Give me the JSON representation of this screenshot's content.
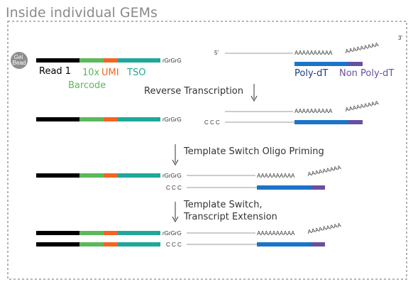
{
  "title": "Inside individual GEMs",
  "bead": "Gel Bead",
  "labels": {
    "read1": "Read 1",
    "tenx": "10x",
    "barcode": "Barcode",
    "umi": "UMI",
    "tso": "TSO",
    "polydt": "Poly-dT",
    "nonpolydt": "Non Poly-dT"
  },
  "ends": {
    "rgrgrg": "rGrGrG",
    "ccc": "C C C",
    "five_prime": "5'",
    "three_prime": "3'"
  },
  "poly_a": "AAAAAAAAAA",
  "poly_a_tail": "AAAAAAAAA",
  "steps": {
    "reverse_transcription": "Reverse Transcription",
    "tso_priming": "Template Switch Oligo Priming",
    "ts_line1": "Template Switch,",
    "ts_line2": "Transcript Extension"
  },
  "colors": {
    "read1": "#000000",
    "barcode": "#5cb85c",
    "umi": "#f26522",
    "tso": "#1fa89a",
    "polydt": "#1a75c9",
    "nonpolydt": "#6a4fa0",
    "polydt_text": "#1f3c8a",
    "nonpolydt_text": "#6a4fa0"
  }
}
